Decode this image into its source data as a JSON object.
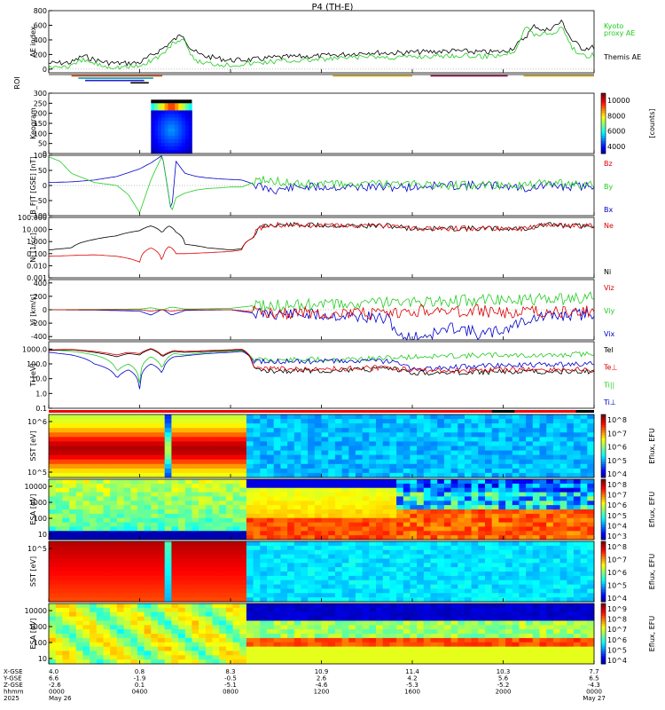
{
  "title": "P4 (TH-E)",
  "chart_data": [
    {
      "type": "line",
      "panel": "ae",
      "ylabel": "AE index",
      "yticks": [
        "800",
        "600",
        "400",
        "200",
        "0"
      ],
      "ylim": [
        -50,
        800
      ],
      "legend": [
        {
          "name": "Kyoto",
          "color": "#22cc22"
        },
        {
          "name": "proxy AE",
          "color": "#22cc22"
        },
        {
          "name": "Themis AE",
          "color": "#000000"
        }
      ],
      "series": [
        {
          "name": "Themis AE",
          "color": "#000000",
          "x": [
            0,
            1,
            1.5,
            2,
            2.5,
            3,
            3.5,
            4,
            4.5,
            5,
            5.3,
            5.6,
            5.9,
            6.2,
            6.6,
            7,
            8,
            9,
            10,
            11,
            12,
            13,
            14,
            15,
            16,
            17,
            18,
            19,
            20,
            20.5,
            21,
            21.4,
            21.8,
            22.2,
            22.6,
            23,
            23.5,
            24
          ],
          "y": [
            80,
            90,
            180,
            130,
            90,
            80,
            80,
            90,
            180,
            280,
            350,
            420,
            480,
            300,
            200,
            170,
            120,
            130,
            160,
            170,
            180,
            200,
            230,
            220,
            230,
            240,
            250,
            230,
            240,
            300,
            450,
            600,
            520,
            580,
            650,
            400,
            280,
            300
          ]
        },
        {
          "name": "Kyoto",
          "color": "#22cc22",
          "x": [
            0,
            1,
            1.5,
            2,
            2.5,
            3,
            3.5,
            4,
            4.5,
            5,
            5.3,
            5.6,
            5.9,
            6.2,
            6.6,
            7,
            8,
            9,
            10,
            11,
            12,
            13,
            14,
            15,
            16,
            17,
            18,
            19,
            20,
            20.5,
            21,
            21.4,
            21.8,
            22.2,
            22.6,
            23,
            23.5,
            24
          ],
          "y": [
            30,
            40,
            120,
            80,
            40,
            30,
            30,
            40,
            120,
            200,
            300,
            380,
            420,
            200,
            100,
            80,
            60,
            80,
            110,
            120,
            130,
            150,
            170,
            160,
            170,
            180,
            190,
            170,
            200,
            250,
            600,
            450,
            500,
            480,
            600,
            300,
            180,
            200
          ]
        }
      ]
    },
    {
      "type": "table",
      "panel": "roi",
      "ylabel": "ROI",
      "bars": [
        {
          "start": 1.0,
          "end": 5.0,
          "color": "#cc4400",
          "row": 0
        },
        {
          "start": 1.3,
          "end": 4.6,
          "color": "#00a0c0",
          "row": 1
        },
        {
          "start": 1.6,
          "end": 4.2,
          "color": "#2222cc",
          "row": 2
        },
        {
          "start": 3.6,
          "end": 4.4,
          "color": "#000000",
          "row": 3
        },
        {
          "start": 12.5,
          "end": 16.0,
          "color": "#d0a000",
          "row": 0
        },
        {
          "start": 16.8,
          "end": 20.2,
          "color": "#880044",
          "row": 0
        },
        {
          "start": 20.9,
          "end": 24.0,
          "color": "#d0a000",
          "row": 0
        }
      ]
    },
    {
      "type": "heatmap",
      "panel": "keogram",
      "ylabel": "Keogram",
      "yticks": [
        "300",
        "250",
        "200",
        "150",
        "100",
        "50",
        "0"
      ],
      "ylim": [
        0,
        300
      ],
      "colorbar": {
        "ticks": [
          "10000",
          "8000",
          "6000",
          "4000"
        ],
        "label": "[counts]",
        "range": [
          3000,
          10000
        ]
      },
      "block": {
        "x0": 4.5,
        "x1": 6.3
      }
    },
    {
      "type": "line",
      "panel": "bfield",
      "ylabel": "B_FIT [GSE] [nT]",
      "yticks": [
        "100",
        "50",
        "0",
        "-50",
        "-100"
      ],
      "ylim": [
        -100,
        100
      ],
      "legend": [
        {
          "name": "Bz",
          "color": "#dd0000"
        },
        {
          "name": "By",
          "color": "#22cc22"
        },
        {
          "name": "Bx",
          "color": "#0000cc"
        }
      ],
      "series": [
        {
          "name": "Bx",
          "color": "#0000cc",
          "x": [
            0,
            1,
            2,
            3,
            4,
            4.5,
            5,
            5.4,
            5.6,
            6,
            6.5,
            7,
            7.5,
            8,
            8.5,
            9,
            9.5,
            10,
            11,
            12,
            13,
            14,
            15,
            16,
            17,
            18,
            19,
            20,
            21,
            22,
            23,
            24
          ],
          "y": [
            10,
            12,
            18,
            30,
            55,
            75,
            100,
            -90,
            80,
            40,
            30,
            25,
            22,
            20,
            18,
            5,
            -10,
            -15,
            -5,
            -5,
            -5,
            -5,
            -5,
            -5,
            0,
            0,
            0,
            0,
            -10,
            0,
            -5,
            0
          ]
        },
        {
          "name": "By",
          "color": "#22cc22",
          "x": [
            0,
            0.5,
            1,
            2,
            3,
            3.5,
            4,
            4.5,
            5,
            5.4,
            5.6,
            6,
            6.5,
            7,
            7.5,
            8,
            8.5,
            9,
            9.5,
            10,
            11,
            12,
            13,
            14,
            15,
            16,
            17,
            18,
            19,
            20,
            21,
            22,
            23,
            24
          ],
          "y": [
            95,
            80,
            40,
            10,
            0,
            -30,
            -90,
            20,
            100,
            -90,
            -40,
            -25,
            -15,
            -10,
            -8,
            -5,
            -5,
            10,
            20,
            15,
            5,
            5,
            5,
            5,
            5,
            5,
            0,
            0,
            0,
            0,
            0,
            10,
            5,
            0
          ]
        }
      ]
    },
    {
      "type": "line",
      "panel": "density",
      "ylabel": "Ni [1/cc]",
      "yticks": [
        "100.000",
        "10.000",
        "1.000",
        "0.100",
        "0.010",
        "0.001"
      ],
      "ylim_log": [
        -3,
        2
      ],
      "legend": [
        {
          "name": "Ne",
          "color": "#dd0000"
        },
        {
          "name": "Ni",
          "color": "#000000"
        }
      ],
      "series": [
        {
          "name": "Ni",
          "color": "#000000",
          "x": [
            0,
            1,
            2,
            3,
            4,
            4.5,
            5,
            5.3,
            5.6,
            6,
            7,
            8,
            8.5,
            9,
            9.5,
            10,
            12,
            14,
            15,
            16,
            18,
            20,
            21,
            22,
            23,
            24
          ],
          "y": [
            0.2,
            0.3,
            1.5,
            3,
            8,
            20,
            5,
            20,
            6,
            0.6,
            0.3,
            0.2,
            0.25,
            2,
            20,
            25,
            22,
            20,
            20,
            12,
            12,
            12,
            12,
            25,
            20,
            20
          ]
        },
        {
          "name": "Ne",
          "color": "#dd0000",
          "x": [
            0,
            1,
            2,
            3,
            4,
            4.5,
            5,
            5.3,
            5.6,
            6,
            7,
            8,
            8.5,
            9,
            9.5,
            10,
            12,
            14,
            15,
            16,
            18,
            20,
            21,
            22,
            23,
            24
          ],
          "y": [
            0.06,
            0.07,
            0.08,
            0.06,
            0.02,
            0.3,
            0.01,
            0.4,
            0.1,
            0.1,
            0.12,
            0.15,
            0.2,
            2,
            20,
            25,
            22,
            20,
            20,
            12,
            12,
            12,
            12,
            25,
            20,
            20
          ]
        }
      ]
    },
    {
      "type": "line",
      "panel": "velocity",
      "ylabel": "Vi [km/s]",
      "yticks": [
        "400",
        "200",
        "0",
        "-200",
        "-400"
      ],
      "ylim": [
        -450,
        450
      ],
      "legend": [
        {
          "name": "Viz",
          "color": "#dd0000"
        },
        {
          "name": "Viy",
          "color": "#22cc22"
        },
        {
          "name": "Vix",
          "color": "#0000cc"
        }
      ],
      "series": [
        {
          "name": "Vix",
          "color": "#0000cc",
          "x": [
            0,
            2,
            4,
            4.5,
            5,
            5.4,
            6,
            8,
            9,
            10,
            12,
            14,
            15,
            15.5,
            16,
            17,
            18,
            19,
            20,
            21,
            22,
            23,
            24
          ],
          "y": [
            0,
            -5,
            -20,
            -80,
            10,
            -80,
            -10,
            0,
            -50,
            -60,
            -80,
            -110,
            -150,
            -420,
            -420,
            -350,
            -250,
            -380,
            -300,
            -150,
            -100,
            -80,
            -60
          ]
        },
        {
          "name": "Viy",
          "color": "#22cc22",
          "x": [
            0,
            2,
            4,
            4.5,
            5,
            5.4,
            6,
            8,
            9,
            10,
            12,
            14,
            15,
            15.5,
            16,
            17,
            18,
            19,
            20,
            21,
            22,
            23,
            24
          ],
          "y": [
            0,
            5,
            10,
            30,
            0,
            40,
            10,
            20,
            60,
            70,
            80,
            90,
            120,
            100,
            110,
            120,
            130,
            140,
            150,
            150,
            160,
            170,
            180
          ]
        },
        {
          "name": "Viz",
          "color": "#dd0000",
          "x": [
            0,
            2,
            4,
            4.5,
            5,
            5.4,
            6,
            8,
            9,
            10,
            12,
            14,
            15,
            15.5,
            16,
            17,
            18,
            19,
            20,
            21,
            22,
            23,
            24
          ],
          "y": [
            0,
            0,
            0,
            -20,
            0,
            -20,
            0,
            0,
            -30,
            -40,
            -50,
            -60,
            -80,
            -60,
            -20,
            0,
            -40,
            -10,
            -60,
            -20,
            -30,
            -40,
            -20
          ]
        }
      ]
    },
    {
      "type": "line",
      "panel": "temperature",
      "ylabel": "Ti [eV]",
      "yticks": [
        "1000.0",
        "100.0",
        "10.0",
        "1.0",
        "0.1"
      ],
      "ylim_log": [
        -1,
        3.5
      ],
      "legend": [
        {
          "name": "Tel",
          "color": "#000000"
        },
        {
          "name": "Te⊥",
          "color": "#dd0000"
        },
        {
          "name": "Ti||",
          "color": "#22cc22"
        },
        {
          "name": "Ti⊥",
          "color": "#0000cc"
        }
      ],
      "series": [
        {
          "name": "Ti||",
          "color": "#22cc22",
          "x": [
            0,
            1,
            2,
            3,
            3.5,
            4,
            4.5,
            5,
            5.5,
            6,
            7,
            8,
            8.5,
            9,
            10,
            12,
            14,
            15,
            16,
            18,
            20,
            22,
            24
          ],
          "y": [
            900,
            700,
            400,
            30,
            100,
            5,
            300,
            40,
            500,
            400,
            600,
            700,
            800,
            200,
            180,
            200,
            220,
            250,
            300,
            350,
            400,
            350,
            500
          ]
        },
        {
          "name": "Ti⊥",
          "color": "#0000cc",
          "x": [
            0,
            1,
            2,
            3,
            3.5,
            4,
            4.5,
            5,
            5.5,
            6,
            7,
            8,
            8.5,
            9,
            10,
            12,
            14,
            15,
            16,
            18,
            20,
            22,
            24
          ],
          "y": [
            600,
            400,
            100,
            10,
            40,
            2,
            100,
            20,
            300,
            350,
            500,
            600,
            700,
            150,
            150,
            150,
            160,
            150,
            40,
            60,
            80,
            90,
            100
          ]
        },
        {
          "name": "Tel",
          "color": "#000000",
          "x": [
            0,
            1,
            2,
            3,
            3.5,
            4,
            4.5,
            5,
            5.5,
            6,
            7,
            8,
            8.5,
            9,
            10,
            12,
            14,
            15,
            16,
            18,
            20,
            22,
            24
          ],
          "y": [
            800,
            900,
            600,
            300,
            500,
            400,
            1000,
            300,
            700,
            600,
            700,
            800,
            900,
            40,
            35,
            35,
            40,
            45,
            25,
            25,
            30,
            30,
            30
          ]
        },
        {
          "name": "Te⊥",
          "color": "#dd0000",
          "x": [
            0,
            1,
            2,
            3,
            3.5,
            4,
            4.5,
            5,
            5.5,
            6,
            7,
            8,
            8.5,
            9,
            10,
            12,
            14,
            15,
            16,
            18,
            20,
            22,
            24
          ],
          "y": [
            900,
            950,
            700,
            400,
            600,
            500,
            1100,
            350,
            800,
            700,
            800,
            900,
            1000,
            50,
            45,
            45,
            50,
            55,
            35,
            35,
            40,
            40,
            40
          ]
        }
      ]
    },
    {
      "type": "heatmap",
      "panel": "sst-ion",
      "ylabel": "SST [eV]",
      "yticks": [
        "10^6",
        "10^5"
      ],
      "colorbar": {
        "ticks": [
          "10^8",
          "10^7",
          "10^6",
          "10^5",
          "10^4"
        ],
        "label": "Eflux, EFU"
      }
    },
    {
      "type": "heatmap",
      "panel": "esa-ion",
      "ylabel": "ESA [eV]",
      "yticks": [
        "10000",
        "1000",
        "100",
        "10"
      ],
      "colorbar": {
        "ticks": [
          "10^8",
          "10^7",
          "10^6",
          "10^5",
          "10^4",
          "10^3"
        ],
        "label": "Eflux, EFU"
      }
    },
    {
      "type": "heatmap",
      "panel": "sst-elec",
      "ylabel": "SST [eV]",
      "yticks": [
        "10^5"
      ],
      "colorbar": {
        "ticks": [
          "10^8",
          "10^7",
          "10^6",
          "10^5",
          "10^4"
        ],
        "label": "Eflux, EFU"
      }
    },
    {
      "type": "heatmap",
      "panel": "esa-elec",
      "ylabel": "ESA [eV]",
      "yticks": [
        "10000",
        "1000",
        "100",
        "10"
      ],
      "colorbar": {
        "ticks": [
          "10^9",
          "10^8",
          "10^7",
          "10^6",
          "10^5",
          "10^4"
        ],
        "label": "Eflux, EFU"
      }
    }
  ],
  "footer": {
    "rowlabels": [
      "X-GSE",
      "Y-GSE",
      "Z-GSE",
      "hhmm",
      "2025"
    ],
    "columns": [
      {
        "lines": [
          "4.0",
          "6.6",
          "-2.6",
          "0000",
          "May 26"
        ]
      },
      {
        "lines": [
          "0.8",
          "-1.9",
          "0.1",
          "0400",
          ""
        ]
      },
      {
        "lines": [
          "8.3",
          "-0.5",
          "-5.1",
          "0800",
          ""
        ]
      },
      {
        "lines": [
          "10.9",
          "2.6",
          "-4.6",
          "1200",
          ""
        ]
      },
      {
        "lines": [
          "11.4",
          "4.2",
          "-5.3",
          "1600",
          ""
        ]
      },
      {
        "lines": [
          "10.3",
          "5.6",
          "-5.2",
          "2000",
          ""
        ]
      },
      {
        "lines": [
          "7.7",
          "6.5",
          "-4.3",
          "0000",
          "May 27"
        ]
      }
    ]
  }
}
